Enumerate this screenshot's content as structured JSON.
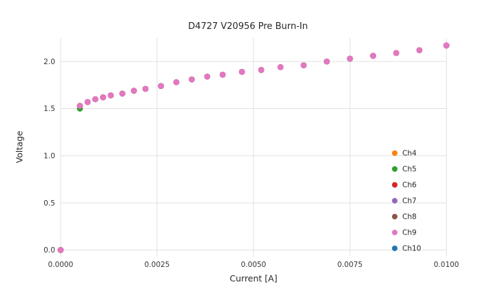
{
  "figure": {
    "background": "#ffffff"
  },
  "chart_data": {
    "type": "scatter",
    "title": "D4727 V20956 Pre Burn-In",
    "xlabel": "Current [A]",
    "ylabel": "Voltage",
    "xlim": [
      0.0,
      0.01
    ],
    "ylim": [
      -0.07,
      2.25
    ],
    "grid": true,
    "grid_color": "#e0e0e0",
    "legend_position": "lower right",
    "x_ticks": {
      "values": [
        0.0,
        0.0025,
        0.005,
        0.0075,
        0.01
      ],
      "labels": [
        "0.0000",
        "0.0025",
        "0.0050",
        "0.0075",
        "0.0100"
      ]
    },
    "y_ticks": {
      "values": [
        0.0,
        0.5,
        1.0,
        1.5,
        2.0
      ],
      "labels": [
        "0.0",
        "0.5",
        "1.0",
        "1.5",
        "2.0"
      ]
    },
    "x": [
      0.0,
      0.0005,
      0.0007,
      0.0009,
      0.0011,
      0.0013,
      0.0016,
      0.0019,
      0.0022,
      0.0026,
      0.003,
      0.0034,
      0.0038,
      0.0042,
      0.0047,
      0.0052,
      0.0057,
      0.0063,
      0.0069,
      0.0075,
      0.0081,
      0.0087,
      0.0093,
      0.01
    ],
    "series": [
      {
        "name": "Ch4",
        "color": "#ff7f0e",
        "values": [
          0.0,
          1.53,
          1.57,
          1.6,
          1.62,
          1.64,
          1.66,
          1.69,
          1.71,
          1.74,
          1.78,
          1.81,
          1.84,
          1.86,
          1.89,
          1.91,
          1.94,
          1.96,
          2.0,
          2.03,
          2.06,
          2.09,
          2.12,
          2.17
        ]
      },
      {
        "name": "Ch5",
        "color": "#2ca02c",
        "values": [
          0.0,
          1.5,
          1.57,
          1.6,
          1.62,
          1.64,
          1.66,
          1.69,
          1.71,
          1.74,
          1.78,
          1.81,
          1.84,
          1.86,
          1.89,
          1.91,
          1.94,
          1.96,
          2.0,
          2.03,
          2.06,
          2.09,
          2.12,
          2.17
        ]
      },
      {
        "name": "Ch6",
        "color": "#d62728",
        "values": [
          0.0,
          1.53,
          1.57,
          1.6,
          1.62,
          1.64,
          1.66,
          1.69,
          1.71,
          1.74,
          1.78,
          1.81,
          1.84,
          1.86,
          1.89,
          1.91,
          1.94,
          1.96,
          2.0,
          2.03,
          2.06,
          2.09,
          2.12,
          2.17
        ]
      },
      {
        "name": "Ch7",
        "color": "#9467bd",
        "values": [
          0.0,
          1.53,
          1.57,
          1.6,
          1.62,
          1.64,
          1.66,
          1.69,
          1.71,
          1.74,
          1.78,
          1.81,
          1.84,
          1.86,
          1.89,
          1.91,
          1.94,
          1.96,
          2.0,
          2.03,
          2.06,
          2.09,
          2.12,
          2.17
        ]
      },
      {
        "name": "Ch8",
        "color": "#8c564b",
        "values": [
          0.0,
          1.53,
          1.57,
          1.6,
          1.62,
          1.64,
          1.66,
          1.69,
          1.71,
          1.74,
          1.78,
          1.81,
          1.84,
          1.86,
          1.89,
          1.91,
          1.94,
          1.96,
          2.0,
          2.03,
          2.06,
          2.09,
          2.12,
          2.17
        ]
      },
      {
        "name": "Ch9",
        "color": "#e377c2",
        "values": [
          0.0,
          1.53,
          1.57,
          1.6,
          1.62,
          1.64,
          1.66,
          1.69,
          1.71,
          1.74,
          1.78,
          1.81,
          1.84,
          1.86,
          1.89,
          1.91,
          1.94,
          1.96,
          2.0,
          2.03,
          2.06,
          2.09,
          2.12,
          2.17
        ]
      },
      {
        "name": "Ch10",
        "color": "#1f77b4",
        "values": []
      }
    ]
  }
}
